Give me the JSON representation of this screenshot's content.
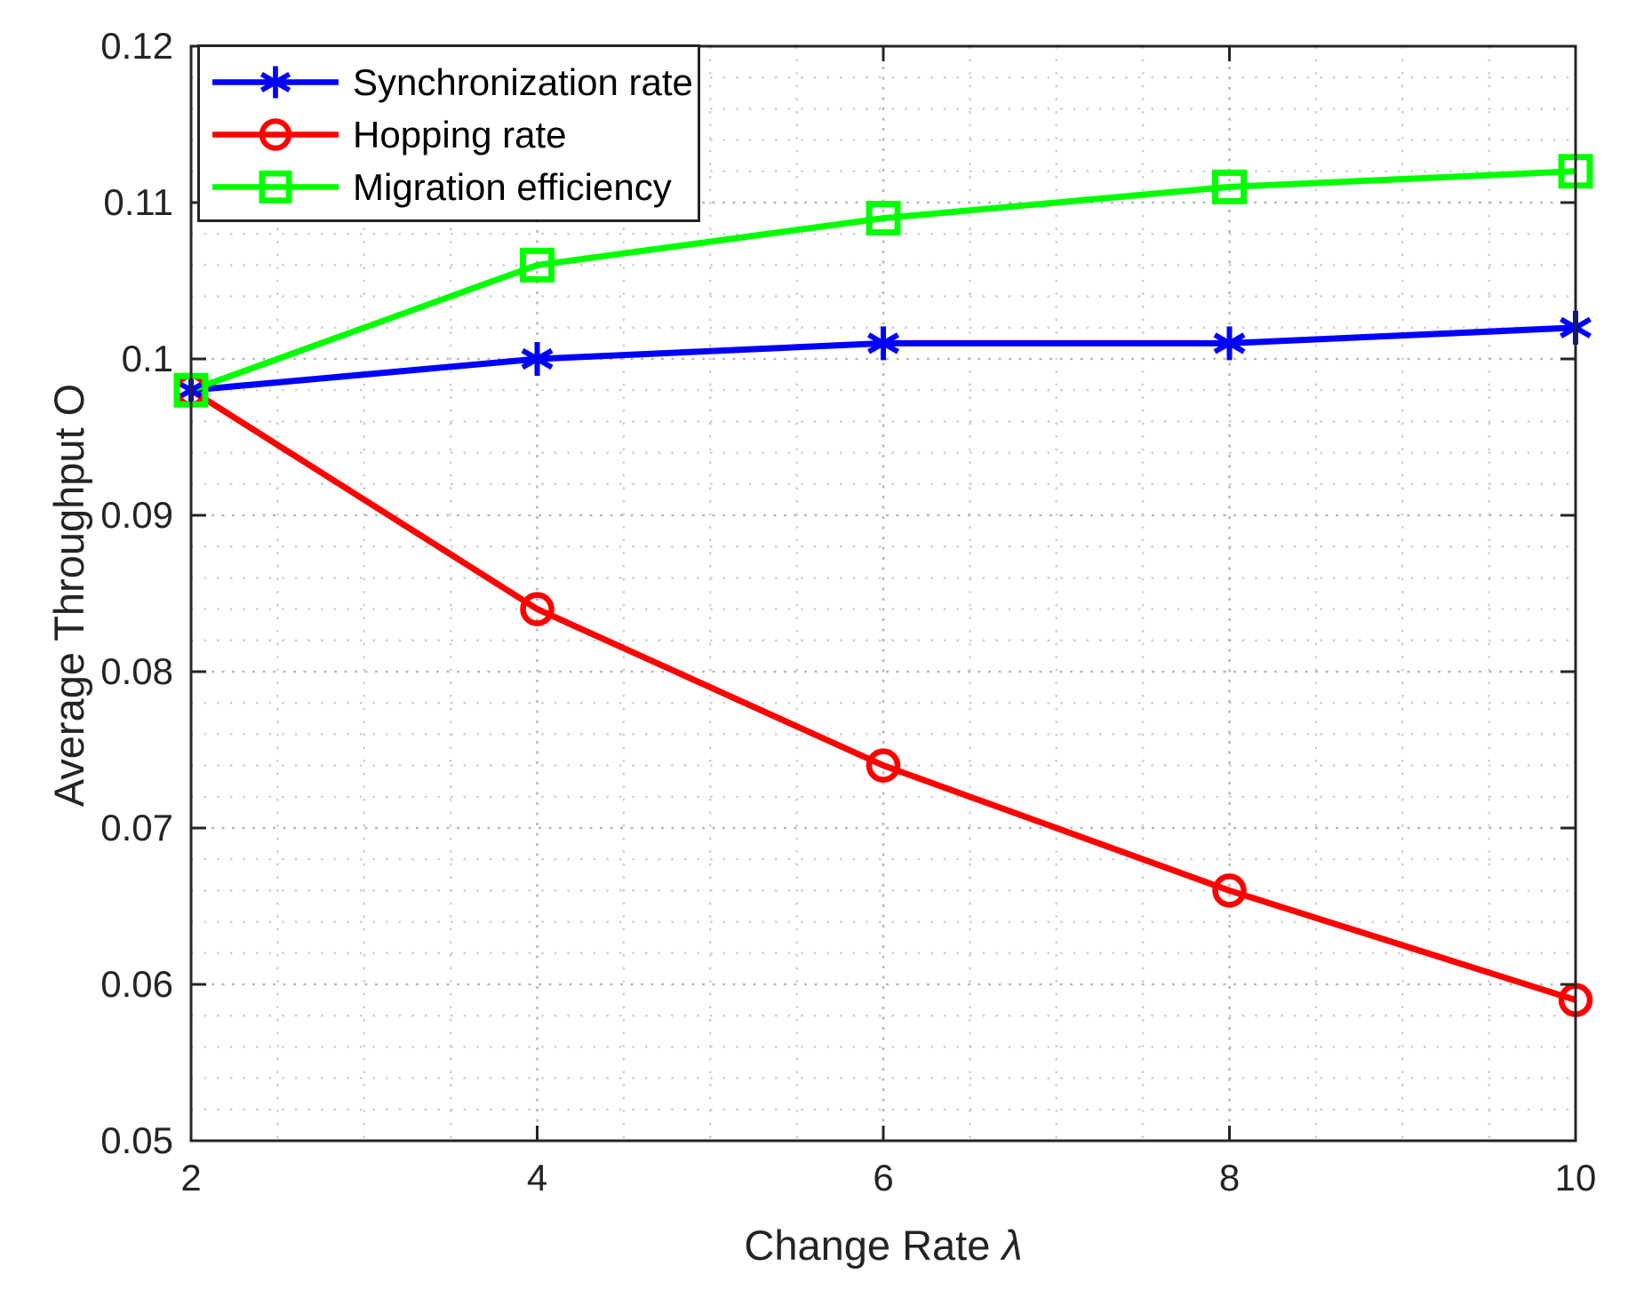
{
  "figure": {
    "background": "#ffffff",
    "axis_color": "#242424",
    "major_grid_color": "#b9b9b9",
    "minor_grid_color": "#cfcfcf",
    "grid_style": "dotted"
  },
  "chart_data": {
    "type": "line",
    "title": "",
    "xlabel": "Change Rate λ",
    "xlabel_prefix": "Change Rate ",
    "xlabel_symbol": "λ",
    "ylabel": "Average Throughput O",
    "x": [
      2,
      4,
      6,
      8,
      10
    ],
    "series": [
      {
        "name": "Synchronization rate",
        "color": "#0000ff",
        "marker": "asterisk",
        "values": [
          0.098,
          0.1,
          0.101,
          0.101,
          0.102
        ]
      },
      {
        "name": "Hopping rate",
        "color": "#ff0000",
        "marker": "circle",
        "values": [
          0.098,
          0.084,
          0.074,
          0.066,
          0.059
        ]
      },
      {
        "name": "Migration efficiency",
        "color": "#00ff00",
        "marker": "square",
        "values": [
          0.098,
          0.106,
          0.109,
          0.111,
          0.112
        ]
      }
    ],
    "xlim": [
      2,
      10
    ],
    "ylim": [
      0.05,
      0.12
    ],
    "x_ticks": [
      2,
      4,
      6,
      8,
      10
    ],
    "x_tick_labels": [
      "2",
      "4",
      "6",
      "8",
      "10"
    ],
    "y_ticks": [
      0.05,
      0.06,
      0.07,
      0.08,
      0.09,
      0.1,
      0.11,
      0.12
    ],
    "y_tick_labels": [
      "0.05",
      "0.06",
      "0.07",
      "0.08",
      "0.09",
      "0.1",
      "0.11",
      "0.12"
    ],
    "x_minor_step": 0.5,
    "y_minor_step": 0.002,
    "grid": true,
    "minor_grid": true,
    "legend_position": "top-left",
    "legend": [
      "Synchronization rate",
      "Hopping rate",
      "Migration efficiency"
    ]
  }
}
